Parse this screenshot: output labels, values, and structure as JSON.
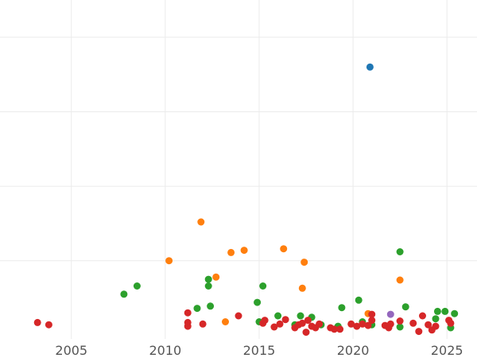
{
  "chart_data": {
    "type": "scatter",
    "title": "",
    "xlabel": "",
    "ylabel": "",
    "xlim": [
      2001.2,
      2026.6
    ],
    "ylim": [
      -0.5,
      45
    ],
    "grid": true,
    "legend": "none",
    "x_ticks": [
      "2005",
      "2010",
      "2015",
      "2020",
      "2025"
    ],
    "x_tick_values": [
      2005,
      2010,
      2015,
      2020,
      2025
    ],
    "y_tick_values": [
      10,
      20,
      30,
      40
    ],
    "colors": {
      "blue": "#1f77b4",
      "orange": "#ff7f0e",
      "green": "#2ca02c",
      "red": "#d62728",
      "purple": "#9467bd"
    },
    "series": [
      {
        "color": "blue",
        "points": [
          [
            2020.9,
            36.0
          ]
        ]
      },
      {
        "color": "orange",
        "points": [
          [
            2011.9,
            15.2
          ],
          [
            2010.2,
            10.0
          ],
          [
            2013.5,
            11.1
          ],
          [
            2014.2,
            11.4
          ],
          [
            2016.3,
            11.6
          ],
          [
            2017.4,
            9.8
          ],
          [
            2012.7,
            7.8
          ],
          [
            2017.3,
            6.3
          ],
          [
            2022.5,
            7.4
          ],
          [
            2013.2,
            1.8
          ],
          [
            2020.8,
            2.9
          ]
        ]
      },
      {
        "color": "green",
        "points": [
          [
            2007.8,
            5.5
          ],
          [
            2008.5,
            6.6
          ],
          [
            2012.3,
            7.5
          ],
          [
            2012.3,
            6.6
          ],
          [
            2015.2,
            6.6
          ],
          [
            2022.5,
            11.2
          ],
          [
            2011.7,
            3.6
          ],
          [
            2012.4,
            3.9
          ],
          [
            2014.9,
            4.4
          ],
          [
            2019.4,
            3.7
          ],
          [
            2020.3,
            4.7
          ],
          [
            2022.8,
            3.8
          ],
          [
            2016.0,
            2.6
          ],
          [
            2017.2,
            2.6
          ],
          [
            2017.8,
            2.4
          ],
          [
            2015.0,
            1.8
          ],
          [
            2016.9,
            1.4
          ],
          [
            2018.3,
            1.4
          ],
          [
            2019.2,
            1.2
          ],
          [
            2021.0,
            1.4
          ],
          [
            2022.5,
            1.1
          ],
          [
            2024.4,
            2.2
          ],
          [
            2024.5,
            3.2
          ],
          [
            2024.9,
            3.2
          ],
          [
            2025.2,
            1.0
          ],
          [
            2025.4,
            2.9
          ],
          [
            2020.5,
            1.8
          ]
        ]
      },
      {
        "color": "red",
        "points": [
          [
            2003.2,
            1.7
          ],
          [
            2003.8,
            1.4
          ],
          [
            2011.2,
            3.0
          ],
          [
            2011.2,
            1.7
          ],
          [
            2011.2,
            1.2
          ],
          [
            2012.0,
            1.5
          ],
          [
            2013.9,
            2.6
          ],
          [
            2015.2,
            1.6
          ],
          [
            2015.3,
            2.0
          ],
          [
            2015.8,
            1.1
          ],
          [
            2016.1,
            1.5
          ],
          [
            2016.4,
            2.1
          ],
          [
            2016.9,
            1.0
          ],
          [
            2017.1,
            1.4
          ],
          [
            2017.3,
            1.6
          ],
          [
            2017.5,
            0.4
          ],
          [
            2017.6,
            2.0
          ],
          [
            2017.8,
            1.2
          ],
          [
            2018.0,
            1.0
          ],
          [
            2018.2,
            1.5
          ],
          [
            2018.8,
            1.0
          ],
          [
            2019.0,
            0.8
          ],
          [
            2019.3,
            0.8
          ],
          [
            2019.9,
            1.5
          ],
          [
            2020.2,
            1.2
          ],
          [
            2020.5,
            1.5
          ],
          [
            2020.8,
            1.3
          ],
          [
            2021.0,
            2.8
          ],
          [
            2021.0,
            2.0
          ],
          [
            2021.7,
            1.3
          ],
          [
            2021.9,
            1.0
          ],
          [
            2022.0,
            1.5
          ],
          [
            2022.5,
            1.9
          ],
          [
            2023.2,
            1.6
          ],
          [
            2023.5,
            0.5
          ],
          [
            2023.7,
            2.6
          ],
          [
            2024.0,
            1.4
          ],
          [
            2024.2,
            0.7
          ],
          [
            2024.4,
            1.2
          ],
          [
            2025.1,
            2.0
          ],
          [
            2025.2,
            1.6
          ]
        ]
      },
      {
        "color": "purple",
        "points": [
          [
            2022.0,
            2.8
          ]
        ]
      }
    ]
  }
}
